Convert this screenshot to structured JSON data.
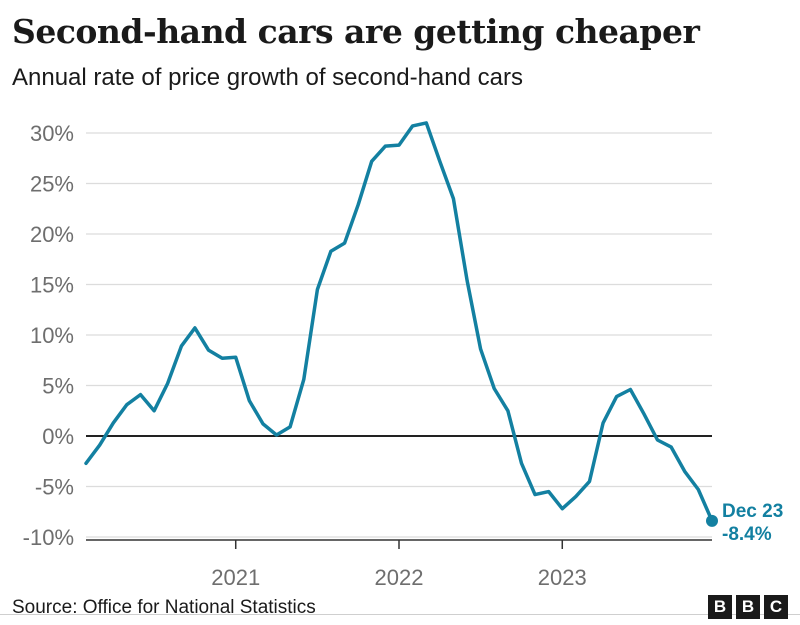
{
  "header": {
    "title": "Second-hand cars are getting cheaper",
    "subtitle": "Annual rate of price growth of second-hand cars"
  },
  "footer": {
    "source": "Source: Office for National Statistics",
    "logo_letters": [
      "B",
      "B",
      "C"
    ]
  },
  "colors": {
    "line": "#1380a1",
    "grid": "#dcdcdc",
    "zero_line": "#222222",
    "tick_text": "#6e6e6e"
  },
  "chart_data": {
    "type": "line",
    "title": "Second-hand cars are getting cheaper",
    "subtitle": "Annual rate of price growth of second-hand cars",
    "y_unit": "%",
    "ylim": [
      -10,
      30
    ],
    "y_ticks": [
      30,
      25,
      20,
      15,
      10,
      5,
      0,
      -5,
      -10
    ],
    "y_tick_labels": [
      "30%",
      "25%",
      "20%",
      "15%",
      "10%",
      "5%",
      "0%",
      "-5%",
      "-10%"
    ],
    "x_tick_labels": [
      "2021",
      "2022",
      "2023"
    ],
    "x_tick_positions": [
      2021,
      2022,
      2023
    ],
    "xlim": [
      2020.083,
      2023.917
    ],
    "grid": "horizontal",
    "series": [
      {
        "x": [
          "2020-02",
          "2020-03",
          "2020-04",
          "2020-05",
          "2020-06",
          "2020-07",
          "2020-08",
          "2020-09",
          "2020-10",
          "2020-11",
          "2020-12",
          "2021-01",
          "2021-02",
          "2021-03",
          "2021-04",
          "2021-05",
          "2021-06",
          "2021-07",
          "2021-08",
          "2021-09",
          "2021-10",
          "2021-11",
          "2021-12",
          "2022-01",
          "2022-02",
          "2022-03",
          "2022-04",
          "2022-05",
          "2022-06",
          "2022-07",
          "2022-08",
          "2022-09",
          "2022-10",
          "2022-11",
          "2022-12",
          "2023-01",
          "2023-02",
          "2023-03",
          "2023-04",
          "2023-05",
          "2023-06",
          "2023-07",
          "2023-08",
          "2023-09",
          "2023-10",
          "2023-11",
          "2023-12"
        ],
        "x_num": [
          2020.083,
          2020.167,
          2020.25,
          2020.333,
          2020.417,
          2020.5,
          2020.583,
          2020.667,
          2020.75,
          2020.833,
          2020.917,
          2021.0,
          2021.083,
          2021.167,
          2021.25,
          2021.333,
          2021.417,
          2021.5,
          2021.583,
          2021.667,
          2021.75,
          2021.833,
          2021.917,
          2022.0,
          2022.083,
          2022.167,
          2022.25,
          2022.333,
          2022.417,
          2022.5,
          2022.583,
          2022.667,
          2022.75,
          2022.833,
          2022.917,
          2023.0,
          2023.083,
          2023.167,
          2023.25,
          2023.333,
          2023.417,
          2023.5,
          2023.583,
          2023.667,
          2023.75,
          2023.833,
          2023.917
        ],
        "values": [
          -2.7,
          -0.9,
          1.3,
          3.1,
          4.1,
          2.5,
          5.2,
          8.9,
          10.7,
          8.5,
          7.7,
          7.8,
          3.5,
          1.2,
          0.1,
          0.9,
          5.6,
          14.5,
          18.3,
          19.1,
          22.9,
          27.2,
          28.7,
          28.8,
          30.7,
          31.0,
          27.2,
          23.5,
          15.4,
          8.6,
          4.7,
          2.5,
          -2.7,
          -5.8,
          -5.5,
          -7.2,
          -6.0,
          -4.5,
          1.3,
          3.9,
          4.6,
          2.2,
          -0.4,
          -1.1,
          -3.5,
          -5.3,
          -8.4
        ]
      }
    ],
    "end_label": {
      "date": "Dec 23",
      "value": "-8.4%"
    }
  }
}
